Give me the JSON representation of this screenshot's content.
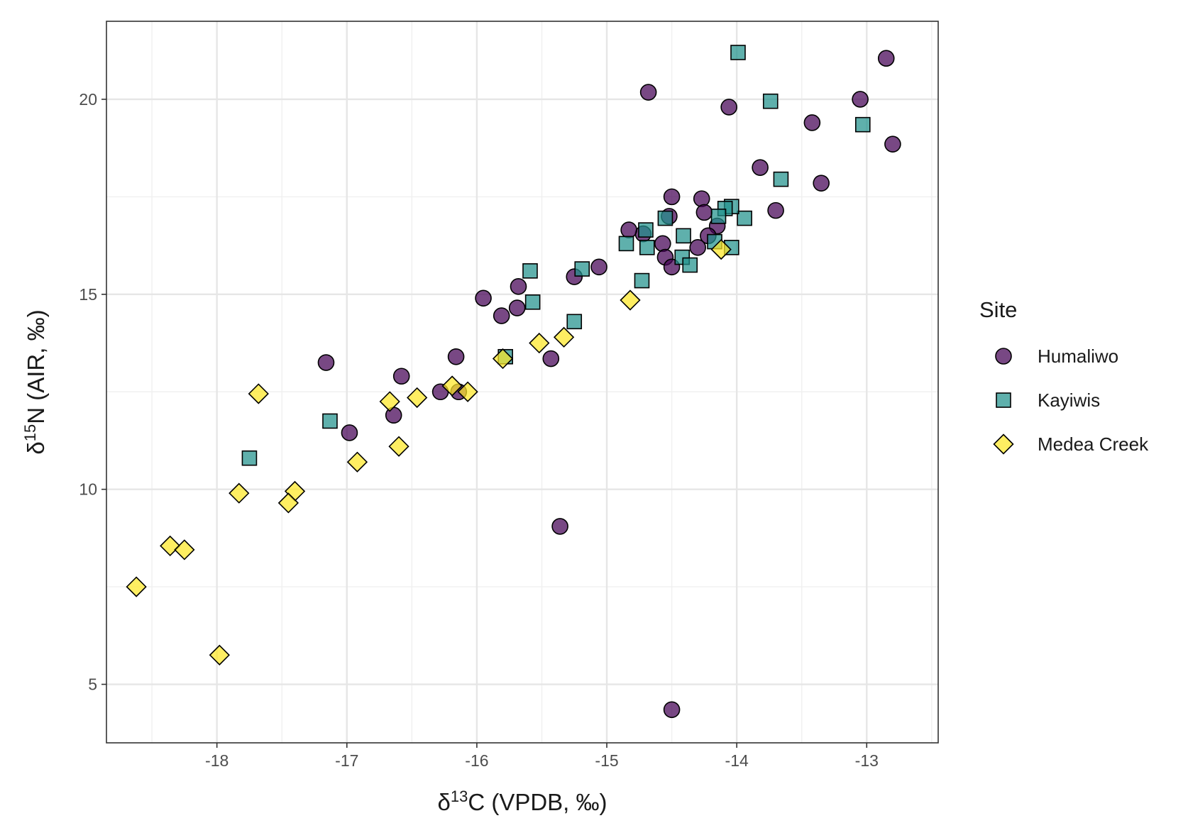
{
  "chart_data": {
    "type": "scatter",
    "xlabel": "δ13C (VPDB, ‰)",
    "ylabel": "δ15N (AIR, ‰)",
    "xlabel_parts": {
      "prefix": "δ",
      "sup": "13",
      "rest": "C (VPDB, ‰)"
    },
    "ylabel_parts": {
      "prefix": "δ",
      "sup": "15",
      "rest": "N (AIR, ‰)"
    },
    "xlim": [
      -18.85,
      -12.45
    ],
    "ylim": [
      3.5,
      22.0
    ],
    "x_ticks": [
      -18,
      -17,
      -16,
      -15,
      -14,
      -13
    ],
    "x_tick_labels": [
      "-18",
      "-17",
      "-16",
      "-15",
      "-14",
      "-13"
    ],
    "y_ticks": [
      5,
      10,
      15,
      20
    ],
    "y_tick_labels": [
      "5",
      "10",
      "15",
      "20"
    ],
    "grid": true,
    "legend": {
      "title": "Site",
      "position": "right"
    },
    "series": [
      {
        "name": "Humaliwo",
        "marker": "circle",
        "color": "#440154",
        "points": [
          [
            -12.85,
            21.05
          ],
          [
            -12.8,
            18.85
          ],
          [
            -13.05,
            20.0
          ],
          [
            -13.35,
            17.85
          ],
          [
            -13.42,
            19.4
          ],
          [
            -13.7,
            17.15
          ],
          [
            -13.82,
            18.25
          ],
          [
            -14.06,
            19.8
          ],
          [
            -14.68,
            20.18
          ],
          [
            -14.5,
            4.35
          ],
          [
            -15.36,
            9.05
          ],
          [
            -14.27,
            17.45
          ],
          [
            -14.5,
            17.5
          ],
          [
            -14.25,
            17.1
          ],
          [
            -14.52,
            17.0
          ],
          [
            -14.15,
            16.75
          ],
          [
            -14.22,
            16.5
          ],
          [
            -14.3,
            16.2
          ],
          [
            -14.57,
            16.3
          ],
          [
            -14.55,
            15.95
          ],
          [
            -14.5,
            15.7
          ],
          [
            -14.72,
            16.55
          ],
          [
            -14.83,
            16.65
          ],
          [
            -15.06,
            15.7
          ],
          [
            -15.25,
            15.45
          ],
          [
            -15.43,
            13.35
          ],
          [
            -15.68,
            15.2
          ],
          [
            -15.69,
            14.65
          ],
          [
            -15.81,
            14.45
          ],
          [
            -15.95,
            14.9
          ],
          [
            -16.16,
            13.4
          ],
          [
            -16.14,
            12.5
          ],
          [
            -16.28,
            12.5
          ],
          [
            -16.58,
            12.9
          ],
          [
            -16.64,
            11.9
          ],
          [
            -16.98,
            11.45
          ],
          [
            -17.16,
            13.25
          ]
        ]
      },
      {
        "name": "Kayiwis",
        "marker": "square",
        "color": "#21918c",
        "points": [
          [
            -13.99,
            21.2
          ],
          [
            -13.74,
            19.95
          ],
          [
            -13.03,
            19.35
          ],
          [
            -13.66,
            17.95
          ],
          [
            -13.94,
            16.95
          ],
          [
            -14.04,
            17.25
          ],
          [
            -14.09,
            17.2
          ],
          [
            -14.14,
            17.0
          ],
          [
            -14.04,
            16.2
          ],
          [
            -14.17,
            16.35
          ],
          [
            -14.41,
            16.5
          ],
          [
            -14.42,
            15.95
          ],
          [
            -14.36,
            15.75
          ],
          [
            -14.55,
            16.95
          ],
          [
            -14.7,
            16.65
          ],
          [
            -14.69,
            16.2
          ],
          [
            -14.85,
            16.3
          ],
          [
            -14.73,
            15.35
          ],
          [
            -15.19,
            15.65
          ],
          [
            -15.59,
            15.6
          ],
          [
            -15.57,
            14.8
          ],
          [
            -15.25,
            14.3
          ],
          [
            -15.78,
            13.4
          ],
          [
            -17.13,
            11.75
          ],
          [
            -17.75,
            10.8
          ]
        ]
      },
      {
        "name": "Medea Creek",
        "marker": "diamond",
        "color": "#fde725",
        "points": [
          [
            -14.12,
            16.15
          ],
          [
            -14.82,
            14.85
          ],
          [
            -15.33,
            13.9
          ],
          [
            -15.52,
            13.75
          ],
          [
            -15.8,
            13.35
          ],
          [
            -16.07,
            12.5
          ],
          [
            -16.19,
            12.65
          ],
          [
            -16.46,
            12.35
          ],
          [
            -16.67,
            12.25
          ],
          [
            -17.68,
            12.45
          ],
          [
            -16.6,
            11.1
          ],
          [
            -16.92,
            10.7
          ],
          [
            -17.4,
            9.95
          ],
          [
            -17.45,
            9.65
          ],
          [
            -17.83,
            9.9
          ],
          [
            -18.36,
            8.55
          ],
          [
            -18.25,
            8.45
          ],
          [
            -18.62,
            7.5
          ],
          [
            -17.98,
            5.75
          ]
        ]
      }
    ]
  }
}
